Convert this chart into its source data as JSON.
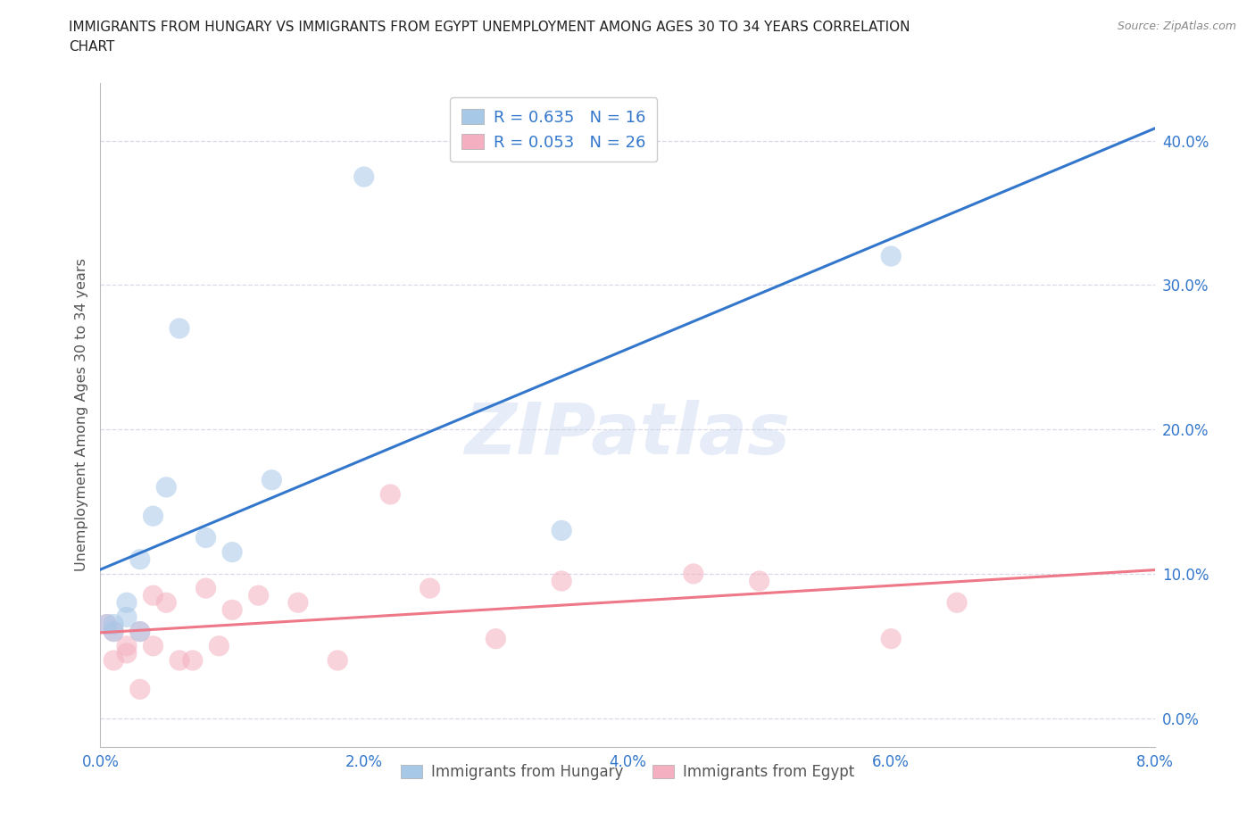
{
  "title_line1": "IMMIGRANTS FROM HUNGARY VS IMMIGRANTS FROM EGYPT UNEMPLOYMENT AMONG AGES 30 TO 34 YEARS CORRELATION",
  "title_line2": "CHART",
  "source": "Source: ZipAtlas.com",
  "ylabel": "Unemployment Among Ages 30 to 34 years",
  "xlim": [
    0.0,
    0.08
  ],
  "ylim": [
    -0.02,
    0.44
  ],
  "yticks": [
    0.0,
    0.1,
    0.2,
    0.3,
    0.4
  ],
  "ytick_labels": [
    "0.0%",
    "10.0%",
    "20.0%",
    "30.0%",
    "40.0%"
  ],
  "xticks": [
    0.0,
    0.02,
    0.04,
    0.06,
    0.08
  ],
  "xtick_labels": [
    "0.0%",
    "2.0%",
    "4.0%",
    "6.0%",
    "8.0%"
  ],
  "hungary_R": 0.635,
  "hungary_N": 16,
  "egypt_R": 0.053,
  "egypt_N": 26,
  "hungary_color": "#a8c8e8",
  "egypt_color": "#f4b0c0",
  "hungary_line_color": "#3377cc",
  "egypt_line_color": "#ee7788",
  "watermark": "ZIPatlas",
  "hungary_x": [
    0.0005,
    0.001,
    0.001,
    0.002,
    0.002,
    0.003,
    0.003,
    0.004,
    0.005,
    0.006,
    0.008,
    0.01,
    0.013,
    0.02,
    0.035,
    0.06
  ],
  "hungary_y": [
    0.065,
    0.065,
    0.06,
    0.07,
    0.08,
    0.06,
    0.11,
    0.14,
    0.16,
    0.27,
    0.125,
    0.115,
    0.165,
    0.375,
    0.13,
    0.32
  ],
  "egypt_x": [
    0.0005,
    0.001,
    0.001,
    0.002,
    0.002,
    0.003,
    0.003,
    0.004,
    0.004,
    0.005,
    0.006,
    0.007,
    0.008,
    0.009,
    0.01,
    0.012,
    0.015,
    0.018,
    0.022,
    0.025,
    0.03,
    0.035,
    0.045,
    0.05,
    0.06,
    0.065
  ],
  "egypt_y": [
    0.065,
    0.04,
    0.06,
    0.045,
    0.05,
    0.06,
    0.02,
    0.085,
    0.05,
    0.08,
    0.04,
    0.04,
    0.09,
    0.05,
    0.075,
    0.085,
    0.08,
    0.04,
    0.155,
    0.09,
    0.055,
    0.095,
    0.1,
    0.095,
    0.055,
    0.08
  ],
  "background_color": "#ffffff",
  "grid_color": "#d8d8e8",
  "title_color": "#222222",
  "axis_label_color": "#555555",
  "tick_color": "#3377cc",
  "legend_label1": "Immigrants from Hungary",
  "legend_label2": "Immigrants from Egypt"
}
